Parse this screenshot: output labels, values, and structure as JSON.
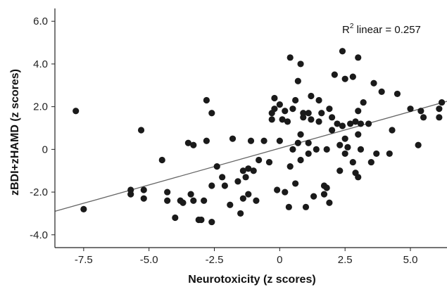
{
  "chart_data": {
    "type": "scatter",
    "xlabel": "Neurotoxicity (z scores)",
    "ylabel": "zBDI+zHAMD (z scores)",
    "xlim": [
      -8.6,
      6.4
    ],
    "ylim": [
      -4.6,
      6.6
    ],
    "x_ticks": [
      -7.5,
      -5.0,
      -2.5,
      0,
      2.5,
      5.0
    ],
    "x_tick_labels": [
      "-7.5",
      "-5.0",
      "-2.5",
      "0",
      "2.5",
      "5.0"
    ],
    "y_ticks": [
      -4.0,
      -2.0,
      0,
      2.0,
      4.0,
      6.0
    ],
    "y_tick_labels": [
      "-4.0",
      "-2.0",
      "0",
      "2.0",
      "4.0",
      "6.0"
    ],
    "grid": false,
    "annotation": {
      "r2_prefix": "R",
      "r2_sup": "2",
      "r2_suffix": " linear = 0.257"
    },
    "fit_line": {
      "x": [
        -8.6,
        6.4
      ],
      "y": [
        -2.9,
        2.25
      ]
    },
    "point_color": "#1a1a1a",
    "line_color": "#666666",
    "points": [
      [
        -7.8,
        1.8
      ],
      [
        -7.5,
        -2.8
      ],
      [
        -5.3,
        0.9
      ],
      [
        -5.7,
        -1.9
      ],
      [
        -5.7,
        -2.1
      ],
      [
        -5.2,
        -1.9
      ],
      [
        -5.2,
        -2.3
      ],
      [
        -4.5,
        -0.5
      ],
      [
        -4.3,
        -2.0
      ],
      [
        -4.3,
        -2.4
      ],
      [
        -4.0,
        -3.2
      ],
      [
        -3.8,
        -2.4
      ],
      [
        -3.7,
        -2.5
      ],
      [
        -3.5,
        0.3
      ],
      [
        -3.4,
        -2.1
      ],
      [
        -3.3,
        -2.4
      ],
      [
        -3.3,
        0.2
      ],
      [
        -3.1,
        -3.3
      ],
      [
        -3.0,
        -3.3
      ],
      [
        -2.9,
        -2.4
      ],
      [
        -2.8,
        2.3
      ],
      [
        -2.8,
        0.4
      ],
      [
        -2.6,
        -3.4
      ],
      [
        -2.6,
        1.7
      ],
      [
        -2.6,
        -1.7
      ],
      [
        -2.4,
        -0.8
      ],
      [
        -2.2,
        -1.3
      ],
      [
        -2.1,
        -1.7
      ],
      [
        -1.9,
        -2.6
      ],
      [
        -1.8,
        0.5
      ],
      [
        -1.6,
        -1.5
      ],
      [
        -1.5,
        -3.0
      ],
      [
        -1.4,
        -2.3
      ],
      [
        -1.4,
        -1.0
      ],
      [
        -1.3,
        -1.3
      ],
      [
        -1.2,
        -0.9
      ],
      [
        -1.2,
        -2.1
      ],
      [
        -1.1,
        0.4
      ],
      [
        -1.0,
        -1.0
      ],
      [
        -0.9,
        -2.4
      ],
      [
        -0.8,
        -0.5
      ],
      [
        -0.6,
        0.4
      ],
      [
        -0.4,
        -0.6
      ],
      [
        -0.3,
        1.4
      ],
      [
        -0.3,
        1.7
      ],
      [
        -0.2,
        1.9
      ],
      [
        -0.2,
        2.4
      ],
      [
        -0.1,
        -1.9
      ],
      [
        0.0,
        0.4
      ],
      [
        0.0,
        2.1
      ],
      [
        0.1,
        1.4
      ],
      [
        0.2,
        -2.0
      ],
      [
        0.2,
        1.8
      ],
      [
        0.3,
        1.3
      ],
      [
        0.35,
        -2.7
      ],
      [
        0.4,
        -0.8
      ],
      [
        0.4,
        4.3
      ],
      [
        0.5,
        1.9
      ],
      [
        0.5,
        0.0
      ],
      [
        0.6,
        2.3
      ],
      [
        0.6,
        -1.6
      ],
      [
        0.7,
        3.2
      ],
      [
        0.7,
        0.3
      ],
      [
        0.8,
        4.0
      ],
      [
        0.8,
        -0.5
      ],
      [
        0.8,
        0.7
      ],
      [
        0.9,
        1.7
      ],
      [
        0.9,
        1.5
      ],
      [
        1.0,
        -2.7
      ],
      [
        1.1,
        0.3
      ],
      [
        1.1,
        -0.2
      ],
      [
        1.1,
        1.7
      ],
      [
        1.2,
        2.5
      ],
      [
        1.2,
        1.4
      ],
      [
        1.3,
        -2.2
      ],
      [
        1.4,
        0.0
      ],
      [
        1.5,
        2.3
      ],
      [
        1.5,
        1.3
      ],
      [
        1.6,
        1.7
      ],
      [
        1.7,
        -1.7
      ],
      [
        1.7,
        -2.1
      ],
      [
        1.8,
        -1.8
      ],
      [
        1.8,
        0.0
      ],
      [
        1.9,
        1.9
      ],
      [
        1.9,
        -2.5
      ],
      [
        2.0,
        0.9
      ],
      [
        2.0,
        1.5
      ],
      [
        2.1,
        3.5
      ],
      [
        2.2,
        1.2
      ],
      [
        2.3,
        0.2
      ],
      [
        2.3,
        -1.0
      ],
      [
        2.4,
        4.6
      ],
      [
        2.4,
        1.1
      ],
      [
        2.5,
        0.5
      ],
      [
        2.5,
        -0.2
      ],
      [
        2.6,
        0.1
      ],
      [
        2.7,
        1.2
      ],
      [
        2.8,
        3.4
      ],
      [
        2.8,
        -0.6
      ],
      [
        2.9,
        -1.1
      ],
      [
        2.9,
        1.3
      ],
      [
        3.0,
        1.8
      ],
      [
        3.0,
        0.7
      ],
      [
        3.0,
        4.3
      ],
      [
        3.0,
        -1.3
      ],
      [
        3.1,
        0.0
      ],
      [
        3.1,
        1.2
      ],
      [
        3.2,
        2.2
      ],
      [
        3.4,
        1.2
      ],
      [
        3.5,
        -0.6
      ],
      [
        3.6,
        3.1
      ],
      [
        3.7,
        -0.2
      ],
      [
        3.9,
        2.7
      ],
      [
        4.2,
        -0.2
      ],
      [
        4.3,
        0.9
      ],
      [
        4.5,
        2.6
      ],
      [
        5.0,
        1.9
      ],
      [
        5.3,
        0.2
      ],
      [
        5.4,
        1.8
      ],
      [
        5.5,
        1.5
      ],
      [
        6.1,
        1.5
      ],
      [
        6.1,
        1.9
      ],
      [
        6.2,
        2.2
      ],
      [
        2.5,
        3.3
      ]
    ]
  }
}
